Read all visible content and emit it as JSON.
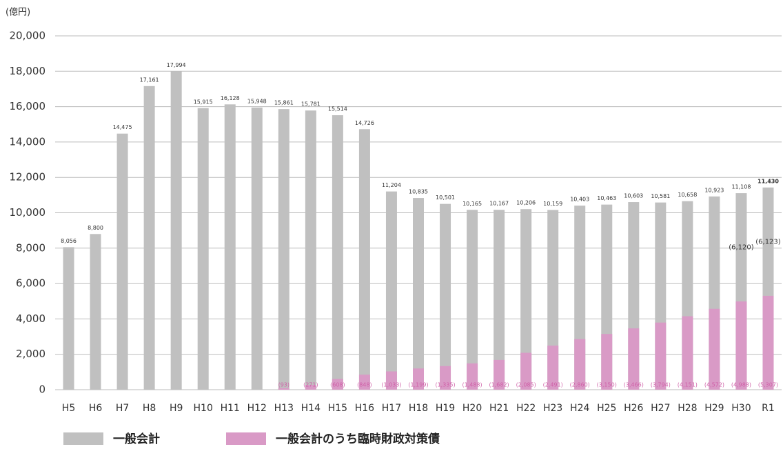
{
  "chart_data": {
    "type": "bar",
    "y_label": "(億円)",
    "categories": [
      "H5",
      "H6",
      "H7",
      "H8",
      "H9",
      "H10",
      "H11",
      "H12",
      "H13",
      "H14",
      "H15",
      "H16",
      "H17",
      "H18",
      "H19",
      "H20",
      "H21",
      "H22",
      "H23",
      "H24",
      "H25",
      "H26",
      "H27",
      "H28",
      "H29",
      "H30",
      "R1"
    ],
    "series": [
      {
        "name": "一般会計",
        "color": "#c0c0c0",
        "values": [
          8056,
          8800,
          14475,
          17161,
          17994,
          15915,
          16128,
          15948,
          15861,
          15781,
          15514,
          14726,
          11204,
          10835,
          10501,
          10165,
          10167,
          10206,
          10159,
          10403,
          10463,
          10603,
          10581,
          10658,
          10923,
          11108,
          11430
        ],
        "value_labels": [
          "8,056",
          "8,800",
          "14,475",
          "17,161",
          "17,994",
          "15,915",
          "16,128",
          "15,948",
          "15,861",
          "15,781",
          "15,514",
          "14,726",
          "11,204",
          "10,835",
          "10,501",
          "10,165",
          "10,167",
          "10,206",
          "10,159",
          "10,403",
          "10,463",
          "10,603",
          "10,581",
          "10,658",
          "10,923",
          "11,108",
          "11,430"
        ]
      },
      {
        "name": "一般会計のうち臨時財政対策債",
        "color": "#d99ac6",
        "values": [
          null,
          null,
          null,
          null,
          null,
          null,
          null,
          null,
          93,
          271,
          608,
          848,
          1033,
          1199,
          1335,
          1488,
          1682,
          2085,
          2491,
          2860,
          3150,
          3466,
          3794,
          4151,
          4572,
          4988,
          5307
        ],
        "value_labels": [
          null,
          null,
          null,
          null,
          null,
          null,
          null,
          null,
          "(93)",
          "(271)",
          "(608)",
          "(848)",
          "(1,033)",
          "(1,199)",
          "(1,335)",
          "(1,488)",
          "(1,682)",
          "(2,085)",
          "(2,491)",
          "(2,860)",
          "(3,150)",
          "(3,466)",
          "(3,794)",
          "(4,151)",
          "(4,572)",
          "(4,988)",
          "(5,307)"
        ]
      }
    ],
    "annotations": [
      {
        "text": "(6,120)",
        "category": "H30"
      },
      {
        "text": "(6,123)",
        "category": "R1"
      }
    ],
    "ylim": [
      0,
      20000
    ],
    "yticks": [
      0,
      {
        "value": 2000,
        "label": "2,000"
      },
      {
        "value": 4000,
        "label": "4,000"
      },
      {
        "value": 6000,
        "label": "6,000"
      },
      {
        "value": 8000,
        "label": "8,000"
      },
      {
        "value": 10000,
        "label": "10,000"
      },
      {
        "value": 12000,
        "label": "12,000"
      },
      {
        "value": 14000,
        "label": "14,000"
      },
      {
        "value": 16000,
        "label": "16,000"
      },
      {
        "value": 18000,
        "label": "18,000"
      },
      {
        "value": 20000,
        "label": "20,000"
      }
    ],
    "grid": true,
    "legend": "bottom"
  }
}
